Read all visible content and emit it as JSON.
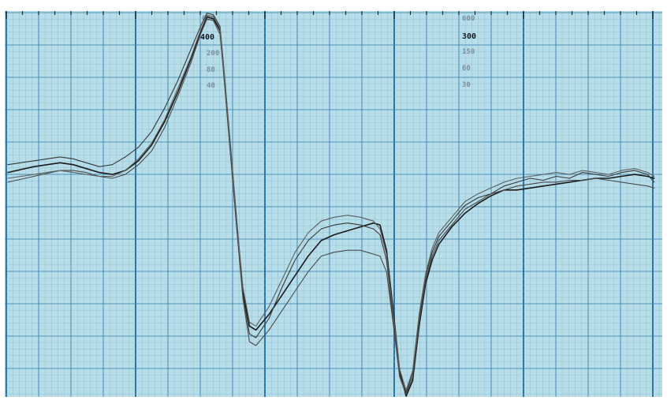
{
  "chart_data": {
    "type": "line",
    "title": "",
    "xlabel": "",
    "ylabel": "",
    "grid": true,
    "xlim": [
      0,
      100
    ],
    "ylim": [
      -100,
      100
    ],
    "paper_scale_labels": [
      {
        "id": "left-600",
        "text": "600",
        "style": "faint"
      },
      {
        "id": "left-400",
        "text": "400",
        "style": "strong"
      },
      {
        "id": "left-200",
        "text": "200",
        "style": "faint"
      },
      {
        "id": "left-80",
        "text": "80",
        "style": "faint"
      },
      {
        "id": "left-40",
        "text": "40",
        "style": "faint"
      },
      {
        "id": "right-600",
        "text": "600",
        "style": "faint"
      },
      {
        "id": "right-300",
        "text": "300",
        "style": "strong"
      },
      {
        "id": "right-150",
        "text": "150",
        "style": "faint"
      },
      {
        "id": "right-60",
        "text": "60",
        "style": "faint"
      },
      {
        "id": "right-30",
        "text": "30",
        "style": "faint"
      }
    ],
    "series": [
      {
        "color": "#1a1a1a",
        "x": [
          0,
          4,
          8,
          10,
          12,
          14,
          16,
          18,
          20,
          22,
          24,
          26,
          28,
          29.5,
          30.5,
          31.5,
          32.5,
          33,
          34,
          35,
          36,
          37,
          38,
          40,
          42,
          44,
          46,
          48,
          50,
          52,
          54,
          56,
          57,
          58,
          59,
          60,
          61,
          62,
          63,
          64,
          65,
          66,
          68,
          70,
          72,
          74,
          76,
          78,
          80,
          82,
          84,
          86,
          88,
          90,
          92,
          94,
          96,
          98,
          99
        ],
        "y": [
          17,
          20,
          22,
          21,
          19,
          17,
          16,
          18,
          23,
          31,
          43,
          58,
          75,
          89,
          97,
          96,
          90,
          72,
          32,
          -8,
          -44,
          -62,
          -64,
          -56,
          -46,
          -36,
          -26,
          -18,
          -15,
          -13,
          -11,
          -9,
          -10,
          -23,
          -53,
          -85,
          -98,
          -90,
          -62,
          -40,
          -28,
          -20,
          -11,
          -4,
          1,
          5,
          8,
          8,
          9,
          10,
          11,
          12,
          13,
          14,
          14,
          15,
          16,
          15,
          14
        ]
      },
      {
        "color": "#383838",
        "x": [
          0,
          4,
          8,
          10,
          12,
          14,
          16,
          18,
          20,
          22,
          24,
          26,
          28,
          29.5,
          30.5,
          31.5,
          32.5,
          33,
          34,
          35,
          36,
          37,
          38,
          40,
          42,
          44,
          46,
          48,
          50,
          52,
          54,
          56,
          57,
          58,
          59,
          60,
          61,
          62,
          63,
          64,
          65,
          66,
          68,
          70,
          72,
          74,
          76,
          78,
          80,
          82,
          84,
          86,
          88,
          90,
          92,
          94,
          96,
          98,
          99
        ],
        "y": [
          21,
          23,
          25,
          24,
          22,
          20,
          21,
          25,
          30,
          38,
          50,
          64,
          80,
          92,
          99,
          98,
          92,
          74,
          35,
          -5,
          -46,
          -66,
          -68,
          -58,
          -42,
          -28,
          -18,
          -12,
          -10,
          -9,
          -10,
          -12,
          -15,
          -28,
          -58,
          -87,
          -96,
          -86,
          -58,
          -36,
          -24,
          -16,
          -8,
          0,
          4,
          6,
          10,
          12,
          14,
          13,
          15,
          14,
          17,
          16,
          15,
          17,
          18,
          16,
          12
        ]
      },
      {
        "color": "#4a4a4a",
        "x": [
          0,
          4,
          8,
          10,
          12,
          14,
          16,
          18,
          20,
          22,
          24,
          26,
          28,
          29.5,
          30.5,
          31.5,
          32.5,
          33,
          34,
          35,
          36,
          37,
          38,
          40,
          42,
          44,
          46,
          48,
          50,
          52,
          54,
          56,
          57,
          58,
          59,
          60,
          61,
          62,
          63,
          64,
          65,
          66,
          68,
          70,
          72,
          74,
          76,
          78,
          80,
          82,
          84,
          86,
          88,
          90,
          92,
          94,
          96,
          98,
          99
        ],
        "y": [
          12,
          15,
          18,
          18,
          17,
          15,
          14,
          16,
          21,
          28,
          40,
          56,
          73,
          88,
          96,
          95,
          88,
          70,
          30,
          -10,
          -48,
          -70,
          -72,
          -64,
          -54,
          -44,
          -34,
          -26,
          -24,
          -23,
          -23,
          -25,
          -26,
          -34,
          -60,
          -88,
          -97,
          -88,
          -60,
          -38,
          -26,
          -18,
          -10,
          -2,
          2,
          6,
          8,
          10,
          11,
          12,
          12,
          13,
          13,
          14,
          13,
          12,
          11,
          10,
          9
        ]
      },
      {
        "color": "#5e5e5e",
        "x": [
          0,
          4,
          8,
          10,
          12,
          14,
          16,
          18,
          20,
          22,
          24,
          26,
          28,
          29.5,
          30.5,
          31.5,
          32.5,
          33,
          34,
          35,
          36,
          37,
          38,
          40,
          42,
          44,
          46,
          48,
          50,
          52,
          54,
          56,
          57,
          58,
          59,
          60,
          61,
          62,
          63,
          64,
          65,
          66,
          68,
          70,
          72,
          74,
          76,
          78,
          80,
          82,
          84,
          86,
          88,
          90,
          92,
          94,
          96,
          98,
          99
        ],
        "y": [
          14,
          16,
          18,
          17,
          16,
          15,
          15,
          18,
          24,
          32,
          44,
          60,
          76,
          90,
          98,
          97,
          91,
          73,
          34,
          -6,
          -42,
          -60,
          -62,
          -52,
          -38,
          -24,
          -14,
          -8,
          -6,
          -5,
          -6,
          -8,
          -12,
          -25,
          -55,
          -84,
          -95,
          -85,
          -56,
          -35,
          -22,
          -14,
          -6,
          2,
          6,
          9,
          12,
          14,
          15,
          16,
          17,
          16,
          18,
          17,
          16,
          18,
          19,
          17,
          15
        ]
      }
    ]
  }
}
